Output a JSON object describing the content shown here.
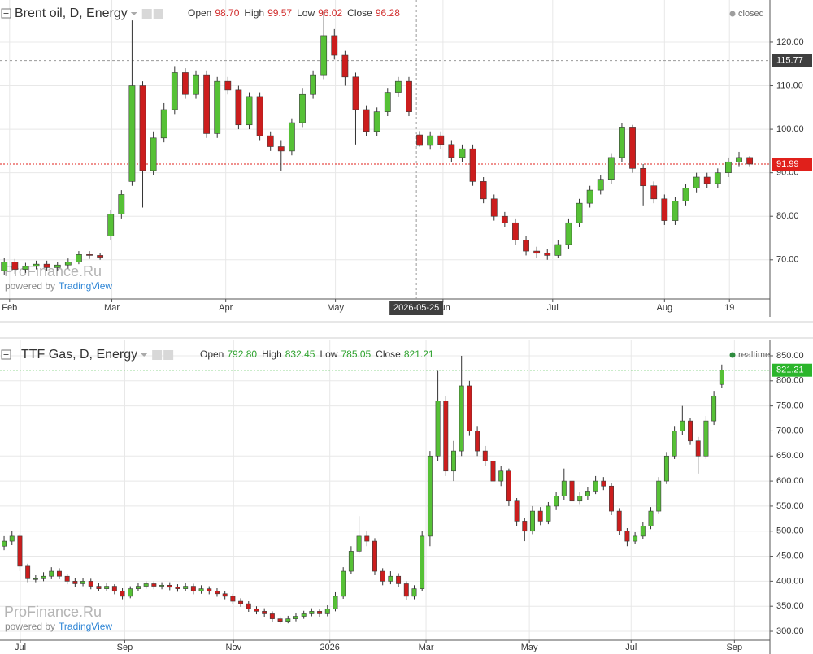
{
  "chart_data": [
    {
      "type": "candlestick",
      "title": "Brent oil, D, Energy",
      "status": "closed",
      "status_color": "#9e9e9e",
      "legend": [
        {
          "name": "Open",
          "value": "98.70"
        },
        {
          "name": "High",
          "value": "99.57"
        },
        {
          "name": "Low",
          "value": "96.02"
        },
        {
          "name": "Close",
          "value": "96.28"
        }
      ],
      "legend_color": "#d12b2b",
      "watermark": {
        "brand": "ProFinance.Ru",
        "powered": "powered by",
        "provider": "TradingView"
      },
      "up_color": "#56c136",
      "down_color": "#cc1d1d",
      "grid": true,
      "xlim": [
        -0.4,
        71.9
      ],
      "ylim": [
        61,
        129.7
      ],
      "xticks": [
        {
          "value": 0.5,
          "label": "Feb"
        },
        {
          "value": 10.1,
          "label": "Mar"
        },
        {
          "value": 20.8,
          "label": "Apr"
        },
        {
          "value": 31.1,
          "label": "May"
        },
        {
          "value": 41.2,
          "label": "Jun"
        },
        {
          "value": 51.5,
          "label": "Jul"
        },
        {
          "value": 62,
          "label": "Aug"
        },
        {
          "value": 68.1,
          "label": "19"
        }
      ],
      "yticks": [
        {
          "value": 70,
          "label": "70.00"
        },
        {
          "value": 80,
          "label": "80.00"
        },
        {
          "value": 90,
          "label": "90.00"
        },
        {
          "value": 100,
          "label": "100.00"
        },
        {
          "value": 110,
          "label": "110.00"
        },
        {
          "value": 120,
          "label": "120.00"
        }
      ],
      "last_price": {
        "value": 91.99,
        "label": "91.99",
        "color": "#e0201b"
      },
      "crosshair": {
        "price": {
          "value": 115.77,
          "label": "115.77"
        },
        "date": {
          "value": 38.7,
          "label": "2026-05-25"
        }
      },
      "open": [
        67.5,
        69.5,
        67.8,
        68.5,
        69.0,
        68.2,
        68.8,
        69.5,
        71.2,
        71.0,
        75.5,
        80.5,
        88.0,
        110.0,
        90.5,
        98.0,
        104.5,
        113.0,
        108.0,
        112.5,
        99.0,
        111.0,
        109.0,
        101.0,
        107.5,
        98.5,
        96.0,
        95.0,
        101.5,
        108.0,
        112.5,
        121.5,
        117.0,
        112.0,
        104.5,
        99.5,
        104.0,
        108.5,
        111.0,
        98.7,
        96.3,
        98.5,
        96.5,
        93.5,
        95.5,
        88.0,
        84.0,
        80.0,
        78.5,
        74.5,
        72.0,
        71.5,
        71.0,
        73.5,
        78.5,
        83.0,
        86.0,
        88.5,
        93.5,
        100.5,
        91.0,
        87.0,
        84.0,
        79.0,
        83.5,
        86.5,
        89.0,
        87.5,
        90.0,
        92.5,
        93.5
      ],
      "high": [
        70.5,
        70.2,
        69.3,
        69.8,
        69.8,
        69.5,
        70.3,
        72.0,
        72.0,
        71.6,
        81.5,
        86.0,
        125.0,
        111.0,
        99.5,
        106.0,
        114.5,
        114.0,
        113.5,
        113.5,
        112.0,
        112.0,
        110.0,
        108.5,
        108.5,
        99.5,
        97.5,
        102.5,
        109.5,
        113.5,
        127.0,
        123.0,
        118.0,
        113.0,
        105.5,
        105.0,
        109.5,
        112.0,
        112.0,
        99.57,
        99.5,
        99.5,
        97.5,
        96.5,
        96.5,
        89.0,
        85.0,
        81.0,
        79.5,
        75.5,
        73.0,
        72.5,
        74.5,
        79.5,
        84.0,
        87.0,
        89.5,
        94.5,
        101.5,
        101.0,
        92.0,
        88.0,
        85.0,
        84.5,
        87.5,
        90.0,
        90.0,
        91.0,
        93.5,
        94.8,
        93.8
      ],
      "low": [
        66.5,
        66.8,
        67.0,
        67.8,
        67.5,
        67.5,
        68.0,
        69.0,
        70.2,
        70.0,
        74.5,
        79.5,
        87.0,
        82.0,
        89.5,
        97.0,
        103.5,
        107.0,
        107.0,
        98.0,
        98.0,
        108.0,
        100.0,
        100.0,
        97.5,
        95.0,
        90.5,
        94.0,
        100.5,
        107.0,
        111.5,
        116.0,
        110.0,
        96.5,
        98.5,
        98.5,
        103.0,
        107.5,
        103.0,
        96.02,
        95.3,
        95.5,
        92.5,
        92.5,
        87.0,
        83.0,
        79.0,
        77.5,
        73.5,
        71.0,
        70.5,
        70.0,
        70.5,
        72.5,
        77.5,
        82.0,
        85.0,
        87.5,
        92.5,
        90.0,
        82.5,
        83.0,
        78.0,
        78.0,
        82.5,
        85.5,
        86.5,
        86.5,
        89.0,
        91.5,
        91.5
      ],
      "close": [
        69.5,
        67.8,
        68.5,
        69.0,
        68.2,
        68.8,
        69.5,
        71.2,
        71.0,
        70.6,
        80.5,
        85.0,
        110.0,
        90.5,
        98.0,
        104.5,
        113.0,
        108.0,
        112.5,
        99.0,
        111.0,
        109.0,
        101.0,
        107.5,
        98.5,
        96.0,
        95.0,
        101.5,
        108.0,
        112.5,
        121.5,
        117.0,
        112.0,
        104.5,
        99.5,
        104.0,
        108.5,
        111.0,
        104.0,
        96.28,
        98.5,
        96.5,
        93.5,
        95.5,
        88.0,
        84.0,
        80.0,
        78.5,
        74.5,
        72.0,
        71.5,
        71.0,
        73.5,
        78.5,
        83.0,
        86.0,
        88.5,
        93.5,
        100.5,
        91.0,
        87.0,
        84.0,
        79.0,
        83.5,
        86.5,
        89.0,
        87.5,
        90.0,
        92.5,
        93.5,
        91.99
      ]
    },
    {
      "type": "candlestick",
      "title": "TTF Gas, D, Energy",
      "status": "realtime",
      "status_color": "#2e8b3e",
      "legend": [
        {
          "name": "Open",
          "value": "792.80"
        },
        {
          "name": "High",
          "value": "832.45"
        },
        {
          "name": "Low",
          "value": "785.05"
        },
        {
          "name": "Close",
          "value": "821.21"
        }
      ],
      "legend_color": "#2fa32f",
      "watermark": {
        "brand": "ProFinance.Ru",
        "powered": "powered by",
        "provider": "TradingView"
      },
      "up_color": "#56c136",
      "down_color": "#cc1d1d",
      "grid": true,
      "xlim": [
        -0.52,
        97.1
      ],
      "ylim": [
        282.2,
        882.4
      ],
      "xticks": [
        {
          "value": 2.06,
          "label": "Jul"
        },
        {
          "value": 15.3,
          "label": "Sep"
        },
        {
          "value": 29.1,
          "label": "Nov"
        },
        {
          "value": 41.3,
          "label": "2026"
        },
        {
          "value": 53.5,
          "label": "Mar"
        },
        {
          "value": 66.6,
          "label": "May"
        },
        {
          "value": 79.5,
          "label": "Jul"
        },
        {
          "value": 92.6,
          "label": "Sep"
        }
      ],
      "yticks": [
        {
          "value": 300,
          "label": "300.00"
        },
        {
          "value": 350,
          "label": "350.00"
        },
        {
          "value": 400,
          "label": "400.00"
        },
        {
          "value": 450,
          "label": "450.00"
        },
        {
          "value": 500,
          "label": "500.00"
        },
        {
          "value": 550,
          "label": "550.00"
        },
        {
          "value": 600,
          "label": "600.00"
        },
        {
          "value": 650,
          "label": "650.00"
        },
        {
          "value": 700,
          "label": "700.00"
        },
        {
          "value": 750,
          "label": "750.00"
        },
        {
          "value": 800,
          "label": "800.00"
        },
        {
          "value": 850,
          "label": "850.00"
        }
      ],
      "last_price": {
        "value": 821.21,
        "label": "821.21",
        "color": "#2bb52b"
      },
      "open": [
        470,
        480,
        490,
        430,
        405,
        405,
        410,
        420,
        410,
        400,
        395,
        400,
        390,
        385,
        390,
        380,
        370,
        385,
        390,
        395,
        390,
        392,
        388,
        385,
        390,
        380,
        385,
        380,
        375,
        370,
        360,
        355,
        345,
        340,
        335,
        325,
        320,
        325,
        330,
        335,
        340,
        335,
        345,
        370,
        420,
        460,
        490,
        480,
        420,
        400,
        410,
        395,
        370,
        385,
        490,
        650,
        760,
        620,
        660,
        790,
        700,
        660,
        640,
        600,
        620,
        560,
        520,
        500,
        540,
        520,
        550,
        570,
        600,
        560,
        570,
        580,
        600,
        590,
        540,
        500,
        480,
        490,
        510,
        540,
        600,
        650,
        700,
        720,
        680,
        650,
        720,
        792.8
      ],
      "high": [
        490,
        500,
        495,
        435,
        412,
        418,
        428,
        426,
        415,
        406,
        407,
        405,
        396,
        396,
        394,
        386,
        390,
        396,
        400,
        400,
        398,
        398,
        394,
        396,
        395,
        392,
        390,
        386,
        380,
        375,
        366,
        360,
        350,
        346,
        340,
        330,
        331,
        336,
        341,
        346,
        345,
        352,
        378,
        428,
        470,
        530,
        500,
        486,
        426,
        420,
        416,
        400,
        392,
        500,
        660,
        820,
        770,
        680,
        850,
        800,
        710,
        670,
        648,
        630,
        625,
        566,
        526,
        550,
        548,
        558,
        578,
        625,
        606,
        578,
        588,
        610,
        608,
        596,
        546,
        506,
        498,
        518,
        548,
        608,
        658,
        710,
        750,
        726,
        688,
        730,
        780,
        832.45
      ],
      "low": [
        462,
        472,
        420,
        398,
        398,
        400,
        404,
        404,
        394,
        388,
        390,
        384,
        380,
        380,
        374,
        364,
        366,
        380,
        385,
        384,
        384,
        382,
        379,
        380,
        374,
        375,
        374,
        369,
        364,
        354,
        349,
        339,
        334,
        329,
        319,
        315,
        316,
        320,
        325,
        330,
        329,
        330,
        340,
        365,
        414,
        455,
        470,
        412,
        392,
        394,
        388,
        362,
        364,
        380,
        470,
        640,
        610,
        600,
        650,
        690,
        650,
        630,
        592,
        590,
        550,
        510,
        480,
        494,
        512,
        514,
        542,
        562,
        552,
        554,
        562,
        574,
        582,
        532,
        492,
        470,
        474,
        484,
        504,
        534,
        594,
        644,
        692,
        672,
        615,
        644,
        712,
        785.05
      ],
      "close": [
        480,
        490,
        430,
        405,
        405,
        410,
        420,
        410,
        400,
        395,
        400,
        390,
        385,
        390,
        380,
        370,
        385,
        390,
        395,
        390,
        392,
        388,
        385,
        390,
        380,
        385,
        380,
        375,
        370,
        360,
        355,
        345,
        340,
        335,
        325,
        320,
        325,
        330,
        335,
        340,
        335,
        345,
        370,
        420,
        460,
        490,
        480,
        420,
        400,
        410,
        395,
        370,
        385,
        490,
        650,
        760,
        620,
        660,
        790,
        700,
        660,
        640,
        600,
        620,
        560,
        520,
        500,
        540,
        520,
        550,
        570,
        600,
        560,
        570,
        580,
        600,
        590,
        540,
        500,
        480,
        490,
        510,
        540,
        600,
        650,
        700,
        720,
        680,
        650,
        720,
        770,
        821.21
      ]
    }
  ]
}
